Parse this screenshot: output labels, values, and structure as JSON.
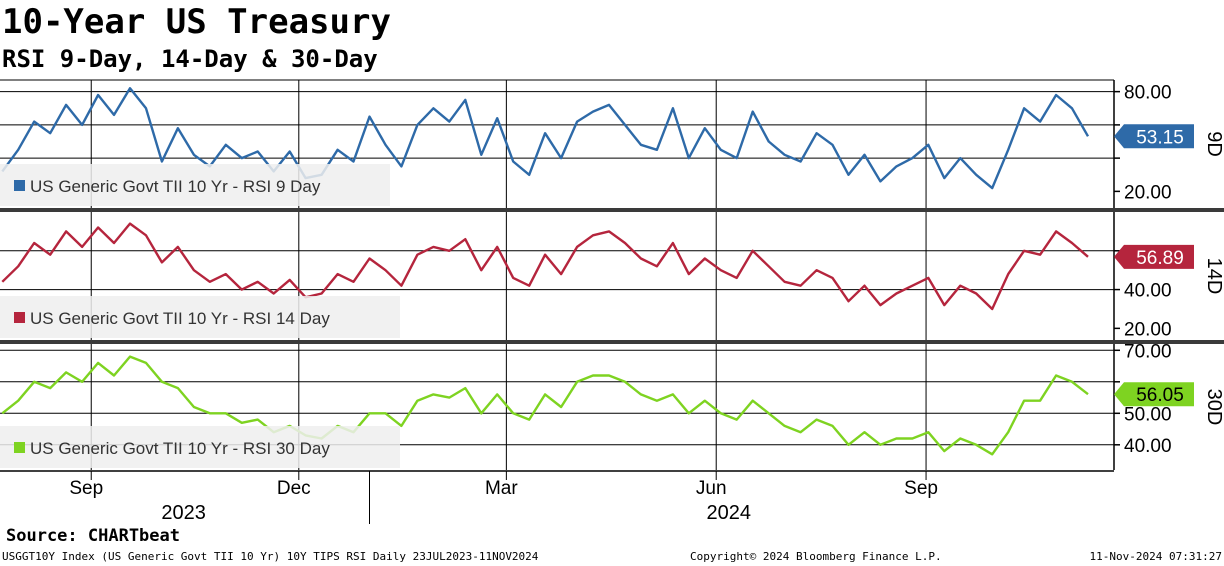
{
  "header": {
    "title": "10-Year US Treasury",
    "subtitle": "RSI 9-Day, 14-Day & 30-Day"
  },
  "footer": {
    "source": "Source: CHARTbeat",
    "ticker": "USGGT10Y Index (US Generic Govt TII 10 Yr) 10Y TIPS RSI  Daily 23JUL2023-11NOV2024",
    "copyright": "Copyright© 2024 Bloomberg Finance L.P.",
    "timestamp": "11-Nov-2024 07:31:27"
  },
  "chart_data": {
    "type": "line",
    "x_axis": {
      "months": [
        {
          "label": "Sep",
          "date": "2023-09-01"
        },
        {
          "label": "Dec",
          "date": "2023-12-01"
        },
        {
          "label": "Mar",
          "date": "2024-03-01"
        },
        {
          "label": "Jun",
          "date": "2024-06-01"
        },
        {
          "label": "Sep",
          "date": "2024-09-01"
        }
      ],
      "years": [
        {
          "label": "2023",
          "from": "2023-07-23",
          "to": "2023-12-31"
        },
        {
          "label": "2024",
          "from": "2024-01-01",
          "to": "2024-11-11"
        }
      ],
      "range": [
        "2023-07-23",
        "2024-11-11"
      ]
    },
    "panels": [
      {
        "id": "9D",
        "panel_label": "9D",
        "legend": "US Generic Govt TII 10 Yr - RSI 9 Day",
        "color": "#2e6aa8",
        "badge_color": "#2e6aa8",
        "last_value": "53.15",
        "ylim": [
          10,
          87
        ],
        "ticks": [
          {
            "v": 20,
            "label": "20.00"
          },
          {
            "v": 40,
            "label": ""
          },
          {
            "v": 60,
            "label": ""
          },
          {
            "v": 80,
            "label": "80.00"
          }
        ],
        "gridlines": [
          40,
          60,
          80
        ],
        "series": {
          "dates": [
            "2023-07-24",
            "2023-07-31",
            "2023-08-07",
            "2023-08-14",
            "2023-08-21",
            "2023-08-28",
            "2023-09-04",
            "2023-09-11",
            "2023-09-18",
            "2023-09-25",
            "2023-10-02",
            "2023-10-09",
            "2023-10-16",
            "2023-10-23",
            "2023-10-30",
            "2023-11-06",
            "2023-11-13",
            "2023-11-20",
            "2023-11-27",
            "2023-12-04",
            "2023-12-11",
            "2023-12-18",
            "2023-12-25",
            "2024-01-01",
            "2024-01-08",
            "2024-01-15",
            "2024-01-22",
            "2024-01-29",
            "2024-02-05",
            "2024-02-12",
            "2024-02-19",
            "2024-02-26",
            "2024-03-04",
            "2024-03-11",
            "2024-03-18",
            "2024-03-25",
            "2024-04-01",
            "2024-04-08",
            "2024-04-15",
            "2024-04-22",
            "2024-04-29",
            "2024-05-06",
            "2024-05-13",
            "2024-05-20",
            "2024-05-27",
            "2024-06-03",
            "2024-06-10",
            "2024-06-17",
            "2024-06-24",
            "2024-07-01",
            "2024-07-08",
            "2024-07-15",
            "2024-07-22",
            "2024-07-29",
            "2024-08-05",
            "2024-08-12",
            "2024-08-19",
            "2024-08-26",
            "2024-09-02",
            "2024-09-09",
            "2024-09-16",
            "2024-09-23",
            "2024-09-30",
            "2024-10-07",
            "2024-10-14",
            "2024-10-21",
            "2024-10-28",
            "2024-11-04",
            "2024-11-11"
          ],
          "values": [
            32,
            45,
            62,
            55,
            72,
            60,
            78,
            66,
            82,
            70,
            38,
            58,
            42,
            35,
            48,
            40,
            44,
            32,
            44,
            28,
            30,
            45,
            38,
            65,
            48,
            35,
            60,
            70,
            62,
            75,
            42,
            64,
            38,
            30,
            55,
            40,
            62,
            68,
            72,
            60,
            48,
            45,
            70,
            40,
            58,
            45,
            40,
            68,
            50,
            42,
            38,
            55,
            48,
            30,
            42,
            26,
            35,
            40,
            48,
            28,
            40,
            30,
            22,
            45,
            70,
            62,
            78,
            70,
            53.15
          ]
        }
      },
      {
        "id": "14D",
        "panel_label": "14D",
        "legend": "US Generic Govt TII 10 Yr - RSI 14 Day",
        "color": "#b5253d",
        "badge_color": "#b5253d",
        "last_value": "56.89",
        "ylim": [
          14,
          80
        ],
        "ticks": [
          {
            "v": 20,
            "label": "20.00"
          },
          {
            "v": 40,
            "label": "40.00"
          },
          {
            "v": 60,
            "label": ""
          }
        ],
        "gridlines": [
          40,
          60
        ],
        "series": {
          "dates": [
            "2023-07-24",
            "2023-07-31",
            "2023-08-07",
            "2023-08-14",
            "2023-08-21",
            "2023-08-28",
            "2023-09-04",
            "2023-09-11",
            "2023-09-18",
            "2023-09-25",
            "2023-10-02",
            "2023-10-09",
            "2023-10-16",
            "2023-10-23",
            "2023-10-30",
            "2023-11-06",
            "2023-11-13",
            "2023-11-20",
            "2023-11-27",
            "2023-12-04",
            "2023-12-11",
            "2023-12-18",
            "2023-12-25",
            "2024-01-01",
            "2024-01-08",
            "2024-01-15",
            "2024-01-22",
            "2024-01-29",
            "2024-02-05",
            "2024-02-12",
            "2024-02-19",
            "2024-02-26",
            "2024-03-04",
            "2024-03-11",
            "2024-03-18",
            "2024-03-25",
            "2024-04-01",
            "2024-04-08",
            "2024-04-15",
            "2024-04-22",
            "2024-04-29",
            "2024-05-06",
            "2024-05-13",
            "2024-05-20",
            "2024-05-27",
            "2024-06-03",
            "2024-06-10",
            "2024-06-17",
            "2024-06-24",
            "2024-07-01",
            "2024-07-08",
            "2024-07-15",
            "2024-07-22",
            "2024-07-29",
            "2024-08-05",
            "2024-08-12",
            "2024-08-19",
            "2024-08-26",
            "2024-09-02",
            "2024-09-09",
            "2024-09-16",
            "2024-09-23",
            "2024-09-30",
            "2024-10-07",
            "2024-10-14",
            "2024-10-21",
            "2024-10-28",
            "2024-11-04",
            "2024-11-11"
          ],
          "values": [
            44,
            52,
            64,
            58,
            70,
            62,
            72,
            64,
            74,
            68,
            54,
            62,
            50,
            44,
            48,
            40,
            44,
            38,
            45,
            36,
            38,
            48,
            44,
            56,
            50,
            42,
            58,
            62,
            60,
            66,
            50,
            62,
            46,
            42,
            58,
            48,
            62,
            68,
            70,
            64,
            56,
            52,
            64,
            48,
            56,
            50,
            46,
            60,
            52,
            44,
            42,
            50,
            46,
            34,
            42,
            32,
            38,
            42,
            46,
            32,
            42,
            38,
            30,
            48,
            60,
            58,
            70,
            64,
            56.89
          ]
        }
      },
      {
        "id": "30D",
        "panel_label": "30D",
        "legend": "US Generic Govt TII 10 Yr - RSI 30 Day",
        "color": "#7ed321",
        "badge_color": "#7ed321",
        "last_value": "56.05",
        "ylim": [
          32,
          72
        ],
        "ticks": [
          {
            "v": 40,
            "label": "40.00"
          },
          {
            "v": 50,
            "label": "50.00"
          },
          {
            "v": 60,
            "label": ""
          },
          {
            "v": 70,
            "label": "70.00"
          }
        ],
        "gridlines": [
          40,
          50,
          60,
          70
        ],
        "series": {
          "dates": [
            "2023-07-24",
            "2023-07-31",
            "2023-08-07",
            "2023-08-14",
            "2023-08-21",
            "2023-08-28",
            "2023-09-04",
            "2023-09-11",
            "2023-09-18",
            "2023-09-25",
            "2023-10-02",
            "2023-10-09",
            "2023-10-16",
            "2023-10-23",
            "2023-10-30",
            "2023-11-06",
            "2023-11-13",
            "2023-11-20",
            "2023-11-27",
            "2023-12-04",
            "2023-12-11",
            "2023-12-18",
            "2023-12-25",
            "2024-01-01",
            "2024-01-08",
            "2024-01-15",
            "2024-01-22",
            "2024-01-29",
            "2024-02-05",
            "2024-02-12",
            "2024-02-19",
            "2024-02-26",
            "2024-03-04",
            "2024-03-11",
            "2024-03-18",
            "2024-03-25",
            "2024-04-01",
            "2024-04-08",
            "2024-04-15",
            "2024-04-22",
            "2024-04-29",
            "2024-05-06",
            "2024-05-13",
            "2024-05-20",
            "2024-05-27",
            "2024-06-03",
            "2024-06-10",
            "2024-06-17",
            "2024-06-24",
            "2024-07-01",
            "2024-07-08",
            "2024-07-15",
            "2024-07-22",
            "2024-07-29",
            "2024-08-05",
            "2024-08-12",
            "2024-08-19",
            "2024-08-26",
            "2024-09-02",
            "2024-09-09",
            "2024-09-16",
            "2024-09-23",
            "2024-09-30",
            "2024-10-07",
            "2024-10-14",
            "2024-10-21",
            "2024-10-28",
            "2024-11-04",
            "2024-11-11"
          ],
          "values": [
            50,
            54,
            60,
            58,
            63,
            60,
            66,
            62,
            68,
            66,
            60,
            58,
            52,
            50,
            50,
            47,
            48,
            44,
            46,
            43,
            42,
            46,
            44,
            50,
            50,
            46,
            54,
            56,
            55,
            58,
            50,
            56,
            50,
            48,
            56,
            52,
            60,
            62,
            62,
            60,
            56,
            54,
            56,
            50,
            54,
            50,
            48,
            54,
            50,
            46,
            44,
            48,
            46,
            40,
            44,
            40,
            42,
            42,
            44,
            38,
            42,
            40,
            37,
            44,
            54,
            54,
            62,
            60,
            56.05
          ]
        }
      }
    ]
  }
}
